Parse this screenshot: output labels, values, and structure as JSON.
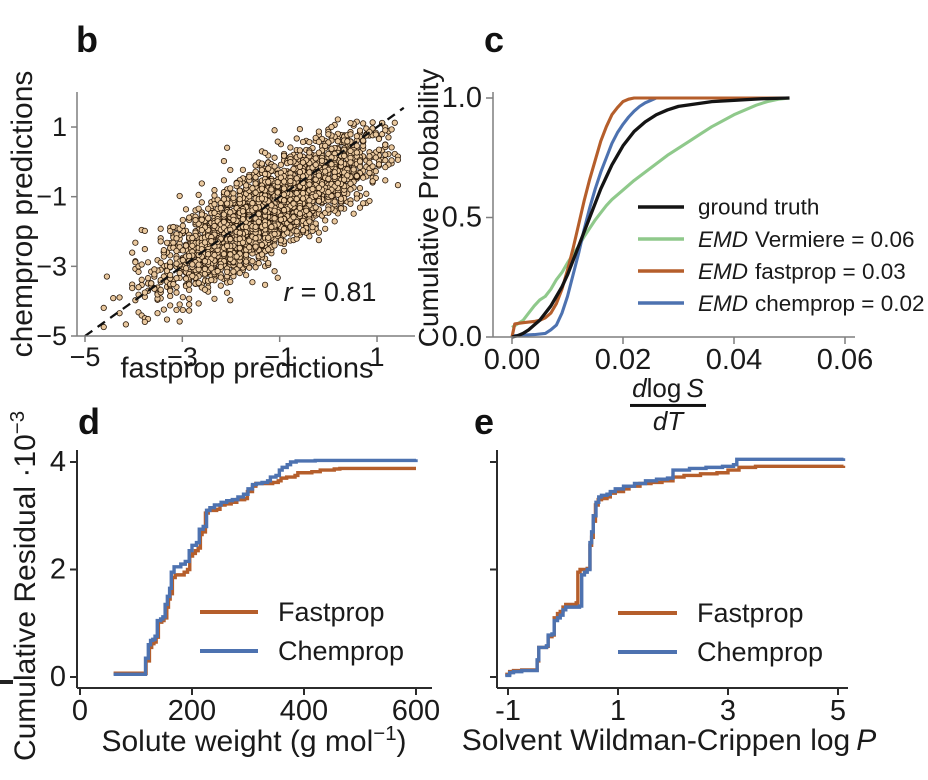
{
  "colors": {
    "black": "#141414",
    "green": "#8fc98b",
    "orange": "#b55e2b",
    "blue": "#4d72b0",
    "scatter_fill": "#e9c89e",
    "scatter_edge": "#2a190a",
    "spine_gray": "#7e7e7e",
    "spine_dark": "#2b2b2b"
  },
  "chart_data": [
    {
      "panel": "b",
      "type": "scatter",
      "xlabel": "fastprop predictions",
      "ylabel": "chemprop predictions",
      "xlim": [
        -5.15,
        1.78
      ],
      "ylim": [
        -5.05,
        2.0
      ],
      "xticks": {
        "values": [
          -5,
          -3,
          -1,
          1
        ],
        "labels": [
          "−5",
          "−3",
          "−1",
          "1"
        ]
      },
      "yticks": {
        "values": [
          1,
          -1,
          -3,
          -5
        ],
        "labels": [
          "1",
          "−1",
          "−3",
          "−5"
        ]
      },
      "identity_line": {
        "from": [
          -5.0,
          -5.0
        ],
        "to": [
          1.55,
          1.55
        ],
        "style": "dashed",
        "color": "#111111"
      },
      "annotation": {
        "italic": "r",
        "text": "= 0.81",
        "pearson_r": 0.81
      },
      "marker": {
        "fill": "#e9c89e",
        "edge": "#2a190a",
        "radius_px": 2.7
      },
      "scatter_cloud": {
        "n": 2800,
        "seed": 13,
        "center": [
          -1.3,
          -1.3
        ],
        "sd_along_diagonal": 1.52,
        "sd_perpendicular": 0.46,
        "perpendicular_bias": -0.12,
        "x_quantum": 0.065,
        "clip_x": [
          -4.65,
          1.45
        ],
        "clip_y": [
          -4.8,
          1.32
        ]
      }
    },
    {
      "panel": "c",
      "type": "line",
      "ylabel": "Cumulative Probability",
      "xlabel_fraction": {
        "num_d": "d",
        "num_log": "log",
        "num_S": "S",
        "den": "dT"
      },
      "xlim": [
        -0.003,
        0.062
      ],
      "ylim": [
        0,
        1.03
      ],
      "xticks": {
        "values": [
          0,
          0.02,
          0.04,
          0.06
        ],
        "labels": [
          "0.00",
          "0.02",
          "0.04",
          "0.06"
        ]
      },
      "yticks": {
        "values": [
          0,
          0.5,
          1
        ],
        "labels": [
          "0.0",
          "0.5",
          "1.0"
        ]
      },
      "legend": [
        {
          "italic": "",
          "text": "ground truth",
          "color": "#141414"
        },
        {
          "italic": "EMD",
          "text": "Vermiere = 0.06",
          "color": "#8fc98b"
        },
        {
          "italic": "EMD",
          "text": "fastprop = 0.03",
          "color": "#b55e2b"
        },
        {
          "italic": "EMD",
          "text": "chemprop = 0.02",
          "color": "#4d72b0"
        }
      ],
      "series": [
        {
          "name": "ground truth",
          "color": "#141414",
          "x": [
            0,
            0.001,
            0.002,
            0.003,
            0.004,
            0.005,
            0.006,
            0.007,
            0.008,
            0.009,
            0.01,
            0.011,
            0.012,
            0.013,
            0.014,
            0.015,
            0.016,
            0.017,
            0.018,
            0.019,
            0.02,
            0.021,
            0.022,
            0.024,
            0.026,
            0.028,
            0.03,
            0.033,
            0.036,
            0.04,
            0.045,
            0.05
          ],
          "y": [
            0,
            0.005,
            0.015,
            0.03,
            0.05,
            0.07,
            0.1,
            0.13,
            0.17,
            0.21,
            0.26,
            0.32,
            0.38,
            0.44,
            0.5,
            0.56,
            0.62,
            0.67,
            0.72,
            0.76,
            0.8,
            0.83,
            0.86,
            0.9,
            0.93,
            0.95,
            0.965,
            0.975,
            0.985,
            0.99,
            0.997,
            1.0
          ]
        },
        {
          "name": "Vermiere",
          "color": "#8fc98b",
          "x": [
            0,
            0.002,
            0.003,
            0.004,
            0.005,
            0.006,
            0.007,
            0.008,
            0.009,
            0.01,
            0.011,
            0.012,
            0.013,
            0.014,
            0.015,
            0.016,
            0.017,
            0.018,
            0.02,
            0.022,
            0.024,
            0.026,
            0.028,
            0.03,
            0.032,
            0.034,
            0.036,
            0.038,
            0.04,
            0.042,
            0.044,
            0.046,
            0.048,
            0.05
          ],
          "y": [
            0.04,
            0.07,
            0.1,
            0.13,
            0.155,
            0.17,
            0.2,
            0.24,
            0.27,
            0.31,
            0.345,
            0.38,
            0.42,
            0.455,
            0.49,
            0.52,
            0.55,
            0.575,
            0.615,
            0.655,
            0.69,
            0.725,
            0.76,
            0.79,
            0.82,
            0.85,
            0.88,
            0.905,
            0.93,
            0.95,
            0.97,
            0.985,
            0.995,
            1.0
          ]
        },
        {
          "name": "fastprop",
          "color": "#b55e2b",
          "x": [
            0,
            0.0005,
            0.002,
            0.004,
            0.005,
            0.006,
            0.007,
            0.008,
            0.009,
            0.01,
            0.011,
            0.012,
            0.013,
            0.014,
            0.015,
            0.016,
            0.017,
            0.018,
            0.019,
            0.02,
            0.021,
            0.022,
            0.05
          ],
          "y": [
            0,
            0.055,
            0.06,
            0.065,
            0.07,
            0.08,
            0.1,
            0.14,
            0.2,
            0.28,
            0.37,
            0.47,
            0.57,
            0.66,
            0.74,
            0.82,
            0.88,
            0.93,
            0.96,
            0.985,
            0.995,
            1.0,
            1.0
          ]
        },
        {
          "name": "chemprop",
          "color": "#4d72b0",
          "x": [
            0,
            0.004,
            0.006,
            0.007,
            0.008,
            0.009,
            0.01,
            0.011,
            0.012,
            0.013,
            0.014,
            0.015,
            0.016,
            0.017,
            0.018,
            0.019,
            0.02,
            0.021,
            0.022,
            0.023,
            0.024,
            0.025,
            0.026,
            0.05
          ],
          "y": [
            0.005,
            0.01,
            0.015,
            0.03,
            0.05,
            0.1,
            0.17,
            0.26,
            0.35,
            0.45,
            0.54,
            0.62,
            0.69,
            0.75,
            0.81,
            0.855,
            0.89,
            0.92,
            0.945,
            0.965,
            0.98,
            0.99,
            1.0,
            1.0
          ]
        }
      ]
    },
    {
      "panel": "d",
      "type": "step",
      "xlabel_parts": {
        "pre": "Solute weight (g mol",
        "sup": "−1",
        "post": ")"
      },
      "ylabel_parts": {
        "pre": "Cumulative Residual ·10",
        "sup": "−3"
      },
      "xlim": [
        -15,
        620
      ],
      "ylim": [
        -0.2,
        4.35
      ],
      "xticks": {
        "values": [
          0,
          200,
          400,
          600
        ],
        "labels": [
          "0",
          "200",
          "400",
          "600"
        ]
      },
      "yticks": {
        "values": [
          0,
          2,
          4
        ],
        "labels": [
          "0",
          "2",
          "4"
        ]
      },
      "legend": [
        {
          "italic": "",
          "text": "Fastprop",
          "color": "#b55e2b"
        },
        {
          "italic": "",
          "text": "Chemprop",
          "color": "#4d72b0"
        }
      ],
      "series": [
        {
          "name": "Fastprop",
          "color": "#b55e2b",
          "x": [
            60,
            113,
            118,
            124,
            128,
            132,
            136,
            140,
            146,
            150,
            155,
            158,
            161,
            165,
            170,
            186,
            192,
            196,
            201,
            206,
            211,
            215,
            218,
            224,
            229,
            244,
            250,
            259,
            270,
            280,
            294,
            299,
            308,
            314,
            330,
            344,
            354,
            359,
            369,
            384,
            389,
            399,
            414,
            429,
            454,
            464,
            600
          ],
          "y": [
            0.07,
            0.07,
            0.3,
            0.55,
            0.62,
            0.65,
            0.74,
            1.02,
            1.05,
            1.1,
            1.3,
            1.45,
            1.55,
            1.85,
            1.9,
            1.95,
            2.0,
            2.25,
            2.3,
            2.35,
            2.4,
            2.65,
            2.7,
            3.05,
            3.1,
            3.12,
            3.2,
            3.22,
            3.25,
            3.3,
            3.32,
            3.45,
            3.55,
            3.6,
            3.6,
            3.62,
            3.65,
            3.7,
            3.72,
            3.75,
            3.8,
            3.8,
            3.82,
            3.85,
            3.87,
            3.88,
            3.88
          ]
        },
        {
          "name": "Chemprop",
          "color": "#4d72b0",
          "x": [
            60,
            113,
            117,
            122,
            126,
            130,
            134,
            138,
            144,
            148,
            152,
            156,
            160,
            163,
            168,
            180,
            188,
            195,
            200,
            208,
            213,
            220,
            226,
            232,
            240,
            252,
            262,
            272,
            282,
            292,
            300,
            308,
            315,
            325,
            335,
            340,
            350,
            356,
            361,
            370,
            376,
            386,
            420,
            600
          ],
          "y": [
            0.05,
            0.05,
            0.35,
            0.6,
            0.68,
            0.7,
            0.76,
            1.05,
            1.08,
            1.12,
            1.35,
            1.5,
            1.65,
            1.95,
            2.05,
            2.1,
            2.15,
            2.35,
            2.45,
            2.5,
            2.75,
            2.8,
            3.1,
            3.15,
            3.2,
            3.25,
            3.28,
            3.3,
            3.35,
            3.4,
            3.5,
            3.58,
            3.6,
            3.62,
            3.65,
            3.72,
            3.75,
            3.85,
            3.9,
            3.95,
            4.0,
            4.02,
            4.03,
            4.05
          ]
        }
      ]
    },
    {
      "panel": "e",
      "type": "step",
      "xlabel_parts": {
        "pre": "Solvent Wildman-Crippen log",
        "italic": "P"
      },
      "xlim": [
        -1.25,
        5.35
      ],
      "ylim": [
        -0.2,
        4.35
      ],
      "xticks": {
        "values": [
          -1,
          1,
          3,
          5
        ],
        "labels": [
          "-1",
          "1",
          "3",
          "5"
        ]
      },
      "yticks": {
        "values": [
          0,
          2,
          4
        ],
        "labels": [
          "",
          "",
          ""
        ]
      },
      "legend": [
        {
          "italic": "",
          "text": "Fastprop",
          "color": "#b55e2b"
        },
        {
          "italic": "",
          "text": "Chemprop",
          "color": "#4d72b0"
        }
      ],
      "series": [
        {
          "name": "Fastprop",
          "color": "#b55e2b",
          "x": [
            -1.05,
            -0.97,
            -0.9,
            -0.75,
            -0.5,
            -0.47,
            -0.44,
            -0.3,
            -0.27,
            -0.2,
            -0.16,
            -0.1,
            -0.05,
            0.0,
            0.05,
            0.24,
            0.27,
            0.31,
            0.44,
            0.49,
            0.52,
            0.55,
            0.59,
            0.64,
            0.7,
            0.8,
            0.86,
            0.95,
            1.1,
            1.2,
            1.4,
            1.6,
            1.8,
            2.0,
            2.2,
            2.5,
            2.8,
            3.0,
            3.2,
            3.5,
            5.1
          ],
          "y": [
            0.05,
            0.1,
            0.12,
            0.13,
            0.13,
            0.3,
            0.55,
            0.57,
            0.75,
            0.78,
            1.1,
            1.18,
            1.22,
            1.3,
            1.35,
            1.38,
            1.95,
            2.0,
            2.02,
            2.45,
            2.6,
            2.9,
            3.2,
            3.3,
            3.32,
            3.35,
            3.42,
            3.45,
            3.5,
            3.55,
            3.6,
            3.62,
            3.65,
            3.72,
            3.75,
            3.78,
            3.8,
            3.85,
            3.9,
            3.92,
            3.93
          ]
        },
        {
          "name": "Chemprop",
          "color": "#4d72b0",
          "x": [
            -1.05,
            -0.97,
            -0.9,
            -0.75,
            -0.5,
            -0.47,
            -0.44,
            -0.3,
            -0.27,
            -0.2,
            -0.16,
            -0.1,
            -0.05,
            0.0,
            0.05,
            0.3,
            0.34,
            0.39,
            0.44,
            0.49,
            0.52,
            0.55,
            0.6,
            0.65,
            0.7,
            0.8,
            0.86,
            0.95,
            1.1,
            1.3,
            1.5,
            1.7,
            1.9,
            2.0,
            2.3,
            2.6,
            2.9,
            3.1,
            3.16,
            5.1
          ],
          "y": [
            0.03,
            0.08,
            0.1,
            0.12,
            0.12,
            0.32,
            0.55,
            0.58,
            0.78,
            0.8,
            1.05,
            1.1,
            1.15,
            1.25,
            1.3,
            1.32,
            1.9,
            1.95,
            2.0,
            2.5,
            2.7,
            3.0,
            3.25,
            3.35,
            3.38,
            3.4,
            3.45,
            3.5,
            3.55,
            3.6,
            3.65,
            3.68,
            3.7,
            3.85,
            3.88,
            3.9,
            3.92,
            3.95,
            4.05,
            4.07
          ]
        }
      ]
    }
  ]
}
